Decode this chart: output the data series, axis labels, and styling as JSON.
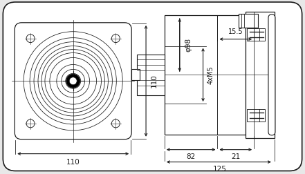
{
  "bg_color": "#e8e8e8",
  "line_color": "#1a1a1a",
  "lw": 0.8,
  "fig_width": 4.41,
  "fig_height": 2.52,
  "dpi": 100,
  "labels": {
    "110_h": "110",
    "110_v": "110",
    "phi98": "φ98",
    "4xm5": "4xM5",
    "15_5": "15.5",
    "82": "82",
    "21": "21",
    "125": "125"
  }
}
